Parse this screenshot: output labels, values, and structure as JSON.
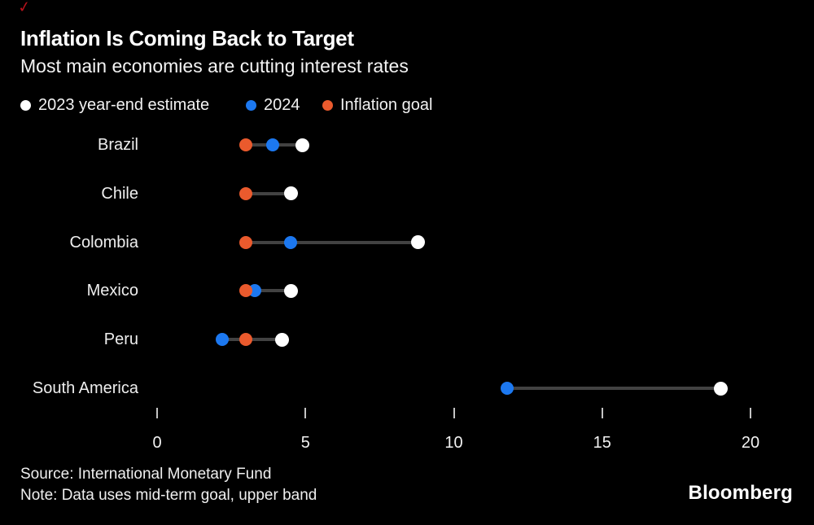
{
  "annotation_mark": {
    "glyph": "✓",
    "color": "#b5121b"
  },
  "header": {
    "title": "Inflation Is Coming Back to Target",
    "subtitle": "Most main economies are cutting interest rates"
  },
  "legend": [
    {
      "id": "estimate-2023",
      "label": "2023 year-end estimate",
      "color": "#ffffff"
    },
    {
      "id": "estimate-2024",
      "label": "2024",
      "color": "#1c78f0"
    },
    {
      "id": "inflation-goal",
      "label": "Inflation goal",
      "color": "#ea5a2d"
    }
  ],
  "chart_data": {
    "type": "scatter",
    "subtype": "dot-plot-dumbbell",
    "title": "Inflation Is Coming Back to Target",
    "subtitle": "Most main economies are cutting interest rates",
    "xlabel": "",
    "ylabel": "",
    "x_axis": {
      "ticks": [
        0,
        5,
        10,
        15,
        20
      ],
      "range": [
        0,
        20
      ],
      "grid": false
    },
    "legend_position": "top",
    "categories": [
      "Brazil",
      "Chile",
      "Colombia",
      "Mexico",
      "Peru",
      "South America"
    ],
    "series": [
      {
        "name": "2023 year-end estimate",
        "color": "#ffffff",
        "values": [
          4.9,
          4.5,
          8.8,
          4.5,
          4.2,
          19.0
        ]
      },
      {
        "name": "2024",
        "color": "#1c78f0",
        "values": [
          3.9,
          null,
          4.5,
          3.3,
          2.2,
          11.8
        ]
      },
      {
        "name": "Inflation goal",
        "color": "#ea5a2d",
        "values": [
          3.0,
          3.0,
          3.0,
          3.0,
          3.0,
          null
        ]
      }
    ],
    "connector_color": "#424242"
  },
  "footer": {
    "source": "Source: International Monetary Fund",
    "note": "Note: Data uses mid-term goal, upper band",
    "brand": "Bloomberg"
  },
  "colors": {
    "background": "#000000",
    "white_dot": "#ffffff",
    "blue_dot": "#1c78f0",
    "orange_dot": "#ea5a2d",
    "line": "#424242",
    "tick": "#c4c4c4"
  }
}
